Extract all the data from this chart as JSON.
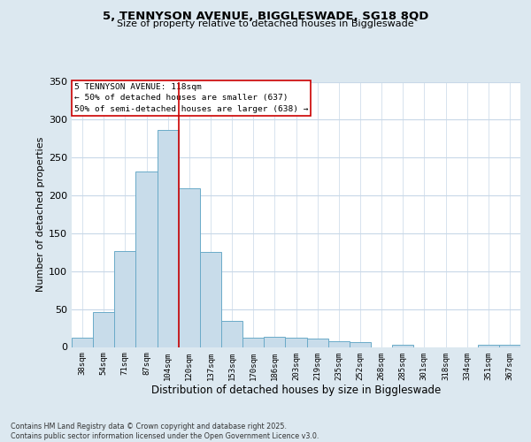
{
  "title1": "5, TENNYSON AVENUE, BIGGLESWADE, SG18 8QD",
  "title2": "Size of property relative to detached houses in Biggleswade",
  "xlabel": "Distribution of detached houses by size in Biggleswade",
  "ylabel": "Number of detached properties",
  "annotation_line1": "5 TENNYSON AVENUE: 118sqm",
  "annotation_line2": "← 50% of detached houses are smaller (637)",
  "annotation_line3": "50% of semi-detached houses are larger (638) →",
  "footnote": "Contains HM Land Registry data © Crown copyright and database right 2025.\nContains public sector information licensed under the Open Government Licence v3.0.",
  "categories": [
    "38sqm",
    "54sqm",
    "71sqm",
    "87sqm",
    "104sqm",
    "120sqm",
    "137sqm",
    "153sqm",
    "170sqm",
    "186sqm",
    "203sqm",
    "219sqm",
    "235sqm",
    "252sqm",
    "268sqm",
    "285sqm",
    "301sqm",
    "318sqm",
    "334sqm",
    "351sqm",
    "367sqm"
  ],
  "values": [
    12,
    46,
    127,
    232,
    286,
    209,
    125,
    34,
    12,
    13,
    12,
    11,
    8,
    7,
    0,
    3,
    0,
    0,
    0,
    3,
    3
  ],
  "bar_color": "#c8dcea",
  "bar_edge_color": "#6aaac8",
  "grid_color": "#c8d8e8",
  "background_color": "#dce8f0",
  "plot_bg_color": "#ffffff",
  "vline_x_index": 5,
  "vline_color": "#cc0000",
  "annotation_box_color": "#ffffff",
  "annotation_box_edge": "#cc0000",
  "ylim": [
    0,
    350
  ],
  "yticks": [
    0,
    50,
    100,
    150,
    200,
    250,
    300,
    350
  ]
}
